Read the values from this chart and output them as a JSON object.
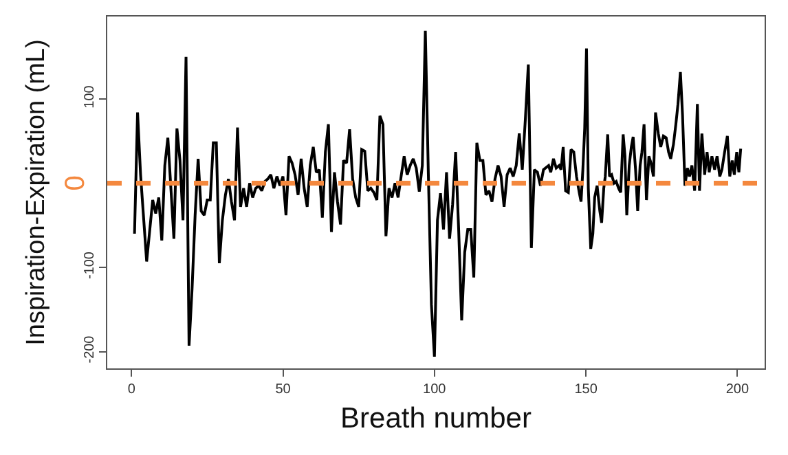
{
  "chart_data": {
    "type": "line",
    "xlabel": "Breath number",
    "ylabel": "Inspiration-Expiration (mL)",
    "xlim": [
      -8,
      209
    ],
    "ylim": [
      -220,
      198
    ],
    "xticks": [
      0,
      50,
      100,
      150,
      200
    ],
    "yticks": [
      -200,
      -100,
      100
    ],
    "grid": false,
    "marker": "none",
    "line_style": "solid",
    "ref_lines": [
      {
        "axis": "y",
        "value": 0,
        "label": "0",
        "color": "#f4883e",
        "line_style": "dashed"
      }
    ],
    "series": [
      {
        "color": "#000000",
        "x": [
          1,
          2,
          3,
          5,
          7,
          8,
          9,
          10,
          11,
          12,
          14,
          15,
          16,
          17,
          18,
          19,
          20,
          21,
          22,
          23,
          24,
          25,
          26,
          27,
          28,
          29,
          30,
          31,
          32,
          33,
          34,
          35,
          36,
          37,
          38,
          39,
          40,
          41,
          42,
          43,
          44,
          45,
          46,
          47,
          48,
          49,
          50,
          51,
          52,
          53,
          54,
          55,
          56,
          57,
          58,
          59,
          60,
          61,
          62,
          63,
          64,
          65,
          66,
          67,
          68,
          69,
          70,
          71,
          72,
          73,
          74,
          75,
          76,
          77,
          78,
          79,
          80,
          81,
          82,
          83,
          84,
          85,
          86,
          87,
          88,
          89,
          90,
          91,
          92,
          93,
          94,
          95,
          96,
          97,
          98,
          99,
          100,
          101,
          102,
          103,
          104,
          105,
          106,
          107,
          108,
          109,
          110,
          111,
          112,
          113,
          114,
          115,
          116,
          117,
          118,
          119,
          120,
          121,
          122,
          123,
          124,
          125,
          126,
          127,
          128,
          129,
          130,
          131,
          132,
          133,
          134,
          135,
          136,
          137.7,
          138.4,
          139.3,
          140.2,
          141.2,
          141.8,
          142.5,
          143.3,
          144.2,
          145.1,
          146,
          146.9,
          147.8,
          148.4,
          149,
          149.6,
          150.2,
          150.8,
          151.6,
          152.3,
          152.9,
          153.7,
          154.6,
          155.2,
          155.9,
          156.4,
          157.2,
          157.8,
          158.5,
          159.3,
          160,
          160.8,
          161.5,
          162.3,
          162.9,
          163.5,
          164.3,
          165,
          165.6,
          166.4,
          167.1,
          167.9,
          168.5,
          169.2,
          170,
          170.8,
          171.5,
          172.3,
          173,
          173.9,
          174.7,
          175.6,
          176.5,
          177.3,
          178,
          178.9,
          179.7,
          180.4,
          181.2,
          181.9,
          182.7,
          183.5,
          184.2,
          185,
          185.9,
          186.8,
          187.5,
          188.3,
          189.2,
          190,
          190.7,
          191.6,
          192.5,
          193.3,
          194.2,
          194.9,
          195.8,
          196.7,
          197.5,
          198.3,
          199,
          199.8,
          200.5,
          201.1
        ],
        "values": [
          -60,
          84,
          10,
          -93,
          -20,
          -36,
          -17,
          -68,
          21,
          54,
          -66,
          65,
          27,
          -44,
          150,
          -193,
          -125,
          -38,
          29,
          -33,
          -38,
          -20,
          -20,
          48,
          48,
          -95,
          -44,
          -14,
          5,
          -22,
          -44,
          66,
          -28,
          -6,
          -28,
          0,
          -17,
          -6,
          -3,
          -9,
          2,
          5,
          10,
          -6,
          8,
          -3,
          8,
          -38,
          32,
          24,
          10,
          -14,
          29,
          -6,
          -28,
          21,
          43,
          13,
          16,
          -41,
          37,
          70,
          -58,
          13,
          -22,
          -49,
          27,
          24,
          64,
          5,
          -17,
          -28,
          40,
          38,
          -9,
          -6,
          -11,
          -20,
          80,
          70,
          -63,
          -6,
          -17,
          0,
          -17,
          8,
          32,
          10,
          21,
          29,
          18,
          -10,
          21,
          181,
          10,
          -144,
          -206,
          -44,
          -12,
          -55,
          13,
          -66,
          -25,
          37,
          -55,
          -163,
          -82,
          -55,
          -55,
          -112,
          48,
          27,
          27,
          -14,
          -9,
          -22,
          5,
          21,
          8,
          -28,
          10,
          18,
          8,
          21,
          59,
          16,
          75,
          141,
          -77,
          16,
          13,
          -3,
          16,
          21,
          13,
          29,
          18,
          21,
          16,
          43,
          -9,
          -11,
          40,
          37,
          8,
          -11,
          -22,
          16,
          65,
          160,
          -6,
          -78,
          -60,
          -17,
          -3,
          -33,
          -47,
          -6,
          8,
          58,
          8,
          10,
          0,
          2,
          -6,
          -11,
          58,
          32,
          -38,
          21,
          43,
          55,
          16,
          -33,
          21,
          37,
          70,
          -20,
          32,
          24,
          8,
          84,
          59,
          43,
          56,
          54,
          37,
          29,
          46,
          70,
          94,
          132,
          81,
          -3,
          18,
          8,
          21,
          -9,
          94,
          -9,
          59,
          10,
          37,
          13,
          32,
          16,
          32,
          8,
          16,
          37,
          56,
          8,
          27,
          10,
          37,
          13,
          41
        ]
      }
    ]
  }
}
